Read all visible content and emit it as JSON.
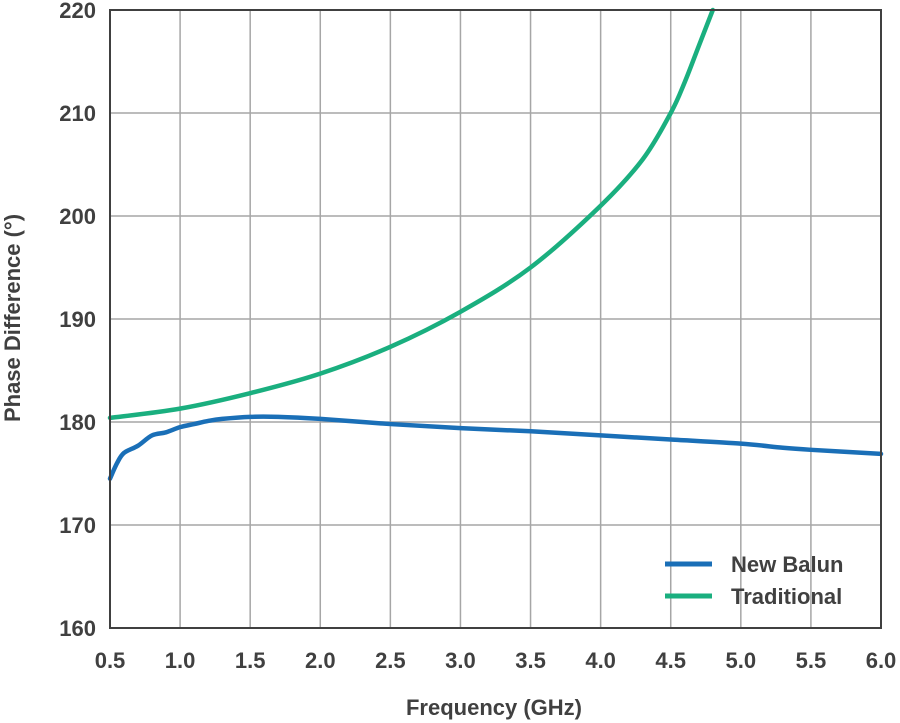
{
  "chart_data": {
    "type": "line",
    "title": "",
    "xlabel": "Frequency (GHz)",
    "ylabel": "Phase Difference (°)",
    "xlim": [
      0.5,
      6.0
    ],
    "ylim": [
      160,
      220
    ],
    "xticks": [
      "0.5",
      "1.0",
      "1.5",
      "2.0",
      "2.5",
      "3.0",
      "3.5",
      "4.0",
      "4.5",
      "5.0",
      "5.5",
      "6.0"
    ],
    "yticks": [
      "160",
      "170",
      "180",
      "190",
      "200",
      "210",
      "220"
    ],
    "grid": true,
    "legend_position": "bottom-right",
    "series": [
      {
        "name": "New Balun",
        "color": "#1a6fb7",
        "x": [
          0.5,
          0.55,
          0.6,
          0.7,
          0.8,
          0.9,
          1.0,
          1.1,
          1.2,
          1.3,
          1.5,
          1.7,
          2.0,
          2.5,
          3.0,
          3.5,
          4.0,
          4.5,
          5.0,
          5.3,
          5.5,
          6.0
        ],
        "y": [
          174.5,
          176.0,
          177.0,
          177.7,
          178.7,
          179.0,
          179.5,
          179.8,
          180.1,
          180.3,
          180.5,
          180.5,
          180.3,
          179.8,
          179.4,
          179.1,
          178.7,
          178.3,
          177.9,
          177.5,
          177.3,
          176.9
        ]
      },
      {
        "name": "Traditional",
        "color": "#1aaf7f",
        "x": [
          0.5,
          1.0,
          1.5,
          2.0,
          2.5,
          3.0,
          3.5,
          4.0,
          4.3,
          4.5,
          4.6,
          4.7,
          4.8
        ],
        "y": [
          180.4,
          181.3,
          182.8,
          184.7,
          187.3,
          190.7,
          195.0,
          201.0,
          205.5,
          210.0,
          213.0,
          216.5,
          220.0
        ]
      }
    ]
  }
}
